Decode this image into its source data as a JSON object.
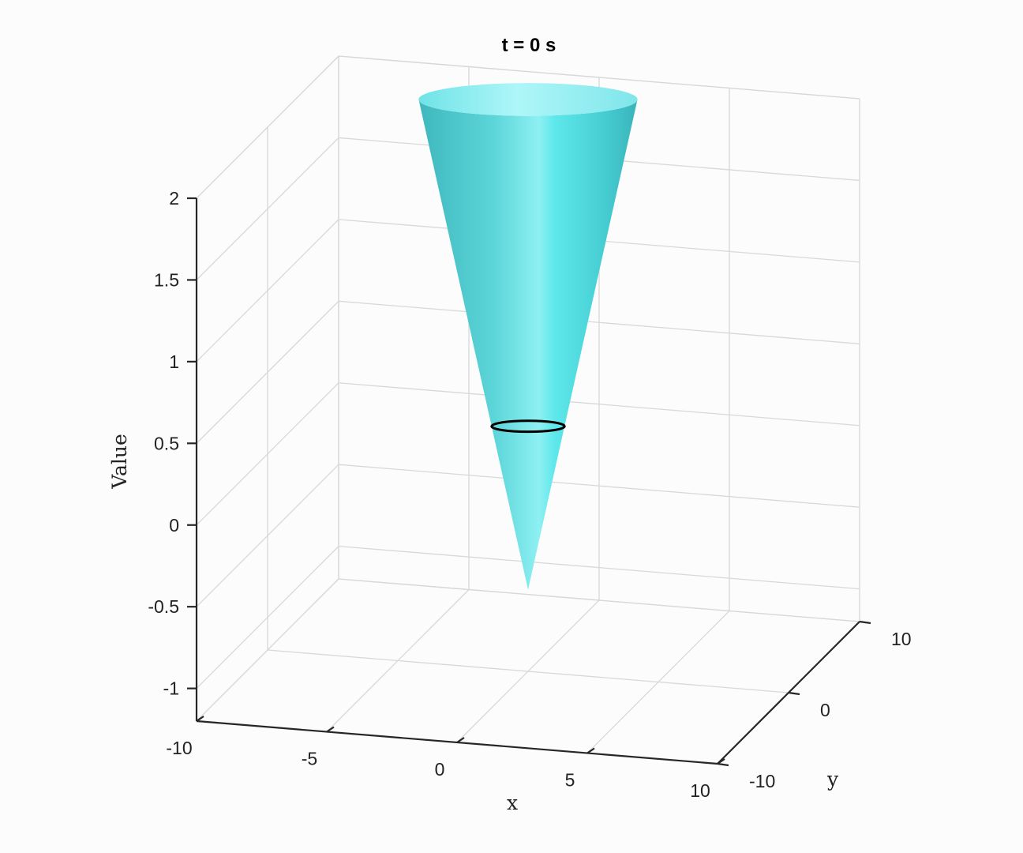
{
  "chart_data": {
    "type": "surface3d",
    "title": "t = 0 s",
    "xlabel": "x",
    "ylabel": "y",
    "zlabel": "Value",
    "xlim": [
      -10,
      10
    ],
    "ylim": [
      -10,
      10
    ],
    "zlim": [
      -1.2,
      2
    ],
    "xticks": [
      "-10",
      "-5",
      "0",
      "5",
      "10"
    ],
    "yticks": [
      "-10",
      "0",
      "10"
    ],
    "zticks": [
      "-1",
      "-0.5",
      "0",
      "0.5",
      "1",
      "1.5",
      "2"
    ],
    "grid": true,
    "surface": {
      "shape": "cone",
      "apex_z": -0.7,
      "top_z": 2.3,
      "top_radius": 4.2,
      "color": "#4fd6dc"
    },
    "ring": {
      "z": 0.3,
      "radius": 1.4,
      "color": "#000000"
    }
  }
}
